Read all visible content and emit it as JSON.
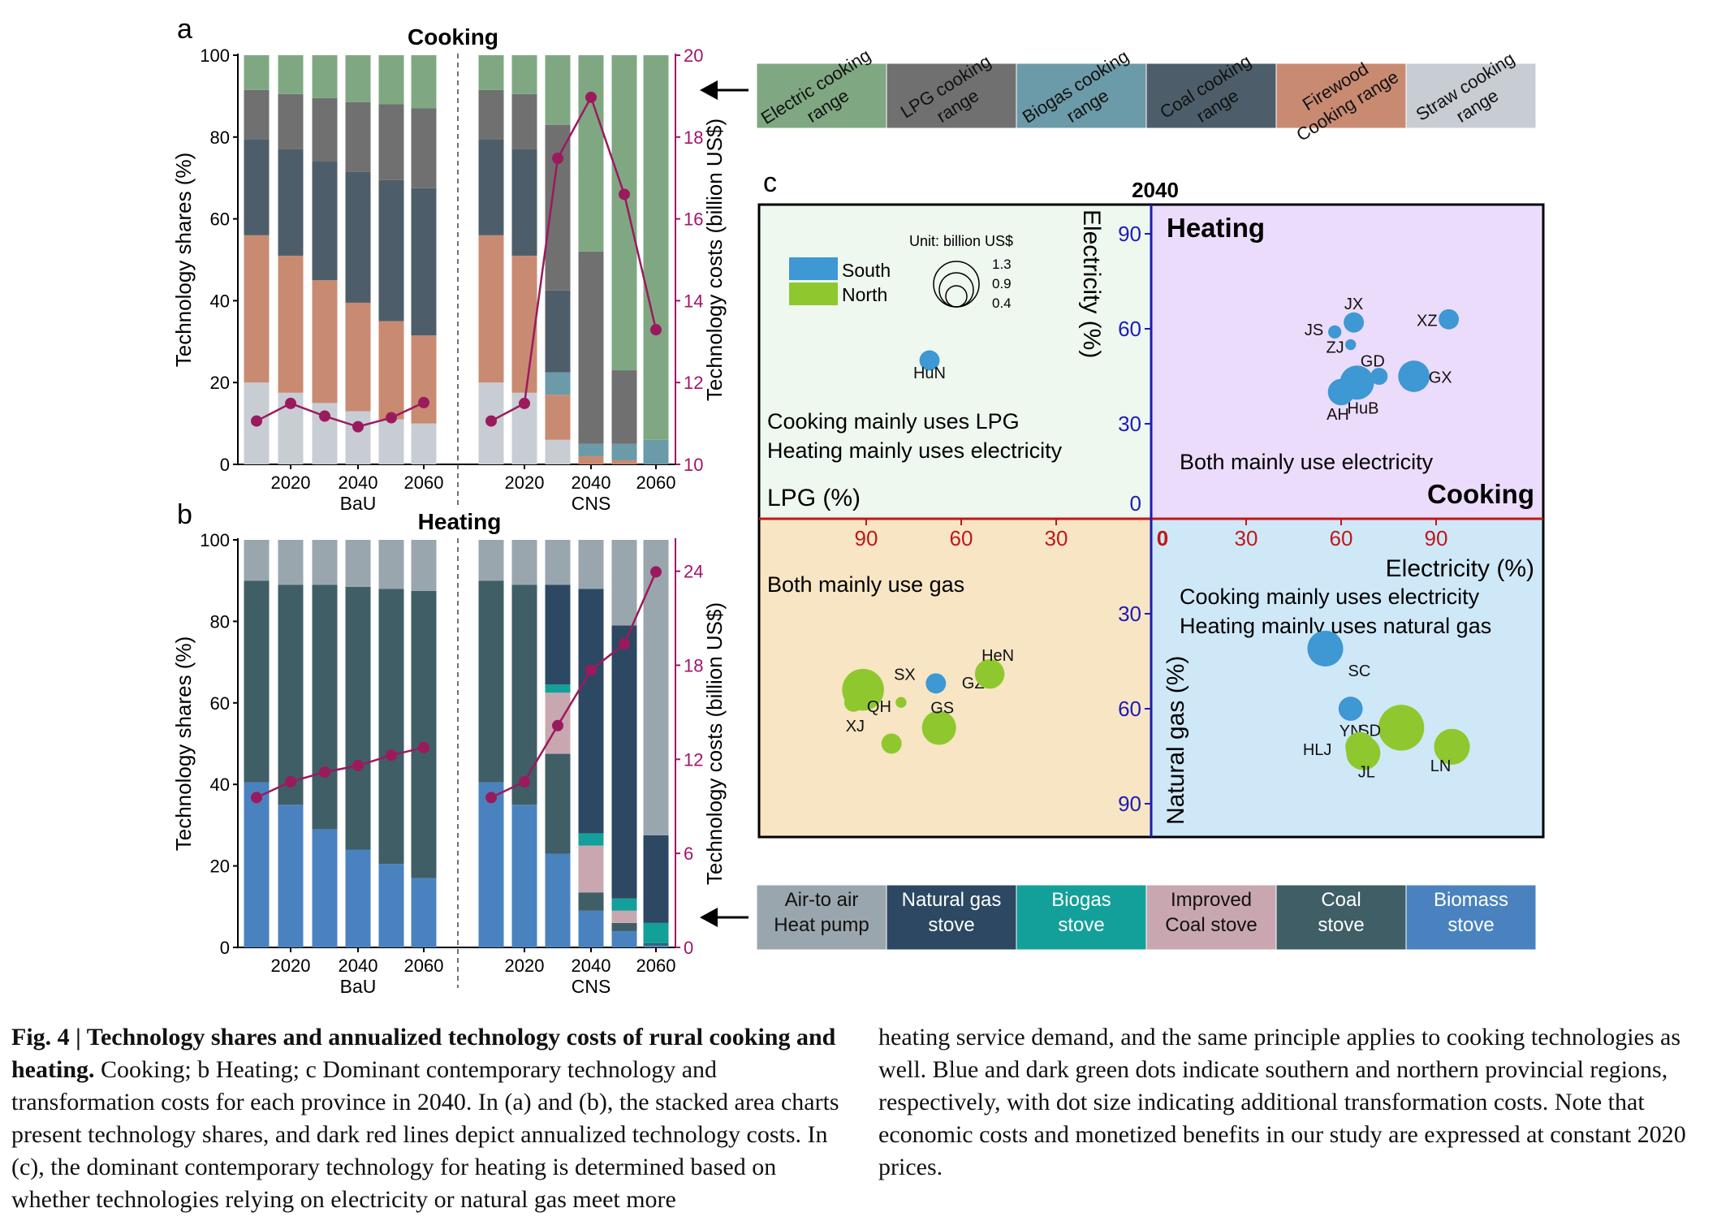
{
  "colors": {
    "cost_line": "#9b1a5e",
    "cost_axis": "#a0156a",
    "south": "#3d98d3",
    "north": "#8fc82e",
    "q_tl": "#eef8ee",
    "q_tr": "#ecdcfb",
    "q_bl": "#f8e5c4",
    "q_br": "#cfe8f8",
    "axis_red": "#c01818",
    "axis_blue": "#1c1cb4"
  },
  "panels": {
    "a": {
      "letter": "a",
      "title": "Cooking",
      "y_label": "Technology shares (%)",
      "y2_label": "Technology costs (billion US$)",
      "y_ticks": [
        "0",
        "20",
        "40",
        "60",
        "80",
        "100"
      ],
      "y2_ticks": [
        "10",
        "12",
        "14",
        "16",
        "18",
        "20"
      ],
      "x_ticks": [
        "2020",
        "2040",
        "2060"
      ],
      "groups": [
        "BaU",
        "CNS"
      ]
    },
    "b": {
      "letter": "b",
      "title": "Heating",
      "y_label": "Technology shares (%)",
      "y2_label": "Technology costs (billion US$)",
      "y_ticks": [
        "0",
        "20",
        "40",
        "60",
        "80",
        "100"
      ],
      "y2_ticks": [
        "0",
        "6",
        "12",
        "18",
        "24"
      ],
      "x_ticks": [
        "2020",
        "2040",
        "2060"
      ],
      "groups": [
        "BaU",
        "CNS"
      ]
    },
    "c": {
      "letter": "c",
      "title": "2040",
      "label_heating": "Heating",
      "label_cooking": "Cooking",
      "axis_electricity_y": "Electricity (%)",
      "axis_electricity_x": "Electricity (%)",
      "axis_lpg": "LPG (%)",
      "axis_gas": "Natural gas (%)",
      "up_ticks": [
        "0",
        "30",
        "60",
        "90"
      ],
      "right_ticks": [
        "0",
        "30",
        "60",
        "90"
      ],
      "left_ticks": [
        "90",
        "60",
        "30"
      ],
      "down_ticks": [
        "30",
        "60",
        "90"
      ],
      "q_tl_line1": "Cooking mainly uses LPG",
      "q_tl_line2": "Heating mainly uses electricity",
      "q_tr_text": "Both mainly use electricity",
      "q_bl_text": "Both mainly use gas",
      "q_br_line1": "Cooking mainly uses electricity",
      "q_br_line2": "Heating mainly uses natural gas",
      "legend_south": "South",
      "legend_north": "North",
      "legend_unit": "Unit: billion US$",
      "legend_sizes": [
        "1.3",
        "0.9",
        "0.4"
      ]
    }
  },
  "legend_cooking": [
    "Electric cooking range",
    "LPG cooking range",
    "Biogas cooking range",
    "Coal cooking range",
    "Firewood Cooking range",
    "Straw cooking range"
  ],
  "legend_heating": [
    "Air-to air Heat pump",
    "Natural gas stove",
    "Biogas stove",
    "Improved Coal stove",
    "Coal stove",
    "Biomass stove"
  ],
  "caption": {
    "fig_label": "Fig. 4 | Technology shares and annualized technology costs of rural cooking and heating.",
    "left_rest": " Cooking; b Heating; c Dominant contemporary technology and transformation costs for each province in 2040. In (a) and (b), the stacked area charts present technology shares, and dark red lines depict annualized technology costs. In (c), the dominant contemporary technology for heating is determined based on whether technologies relying on electricity or natural gas meet more",
    "right": "heating service demand, and the same principle applies to cooking technologies as well. Blue and dark green dots indicate southern and northern provincial regions, respectively, with dot size indicating additional transformation costs. Note that economic costs and monetized benefits in our study are expressed at constant 2020 prices."
  },
  "chart_data": [
    {
      "type": "bar",
      "title": "Cooking",
      "ylabel": "Technology shares (%)",
      "y2label": "Technology costs (billion US$)",
      "ylim": [
        0,
        100
      ],
      "y2lim": [
        10,
        20
      ],
      "groups": [
        "BaU",
        "CNS"
      ],
      "x": [
        2010,
        2020,
        2030,
        2040,
        2050,
        2060
      ],
      "stack_order": [
        "Straw cooking range",
        "Firewood Cooking range",
        "Biogas cooking range",
        "Coal cooking range",
        "LPG cooking range",
        "Electric cooking range"
      ],
      "series_colors": [
        "#c8cdd4",
        "#c98a72",
        "#6b9aa8",
        "#4d5e6a",
        "#707070",
        "#7fa882"
      ],
      "bau": [
        [
          20,
          36,
          0,
          23.5,
          12,
          8.5
        ],
        [
          17.5,
          33.5,
          0,
          26,
          13.5,
          9.5
        ],
        [
          15,
          30,
          0,
          29,
          15.5,
          10.5
        ],
        [
          13,
          26.5,
          0,
          32,
          17,
          11.5
        ],
        [
          11,
          24,
          0,
          34.5,
          18.5,
          12
        ],
        [
          10,
          21.5,
          0,
          36,
          19.5,
          13
        ]
      ],
      "cns": [
        [
          20,
          36,
          0,
          23.5,
          12,
          8.5
        ],
        [
          17.5,
          33.5,
          0,
          26,
          13.5,
          9.5
        ],
        [
          6,
          11,
          5.5,
          20,
          40.5,
          17
        ],
        [
          0,
          2,
          3,
          0,
          47,
          48
        ],
        [
          0,
          1,
          4,
          0,
          18,
          77
        ],
        [
          0,
          0,
          6,
          0,
          0,
          94
        ]
      ],
      "costs_bau": [
        11.06,
        11.49,
        11.18,
        10.92,
        11.14,
        11.51
      ],
      "costs_cns": [
        11.06,
        11.49,
        17.48,
        18.97,
        16.6,
        13.29
      ]
    },
    {
      "type": "bar",
      "title": "Heating",
      "ylabel": "Technology shares (%)",
      "y2label": "Technology costs (billion US$)",
      "ylim": [
        0,
        100
      ],
      "y2lim": [
        0,
        26
      ],
      "groups": [
        "BaU",
        "CNS"
      ],
      "x": [
        2010,
        2020,
        2030,
        2040,
        2050,
        2060
      ],
      "stack_order": [
        "Biomass stove",
        "Coal stove",
        "Improved Coal stove",
        "Biogas stove",
        "Natural gas stove",
        "Air-to air Heat pump"
      ],
      "series_colors": [
        "#4a82bf",
        "#3f5e66",
        "#c9a7b0",
        "#13a09a",
        "#2c4863",
        "#9aa6ae"
      ],
      "bau": [
        [
          40.5,
          49.5,
          0,
          0,
          0,
          10
        ],
        [
          35,
          54,
          0,
          0,
          0,
          11
        ],
        [
          29,
          60,
          0,
          0,
          0,
          11
        ],
        [
          24,
          64.5,
          0,
          0,
          0,
          11.5
        ],
        [
          20.5,
          67.5,
          0,
          0,
          0,
          12
        ],
        [
          17,
          70.5,
          0,
          0,
          0,
          12.5
        ]
      ],
      "cns": [
        [
          40.5,
          49.5,
          0,
          0,
          0,
          10
        ],
        [
          35,
          54,
          0,
          0,
          0,
          11
        ],
        [
          23,
          24.5,
          15,
          2,
          24.5,
          11
        ],
        [
          9,
          4.5,
          11.5,
          3,
          60,
          12
        ],
        [
          4,
          2,
          3,
          3,
          67,
          21
        ],
        [
          0.5,
          0.5,
          0,
          5,
          21.5,
          72.5
        ]
      ],
      "costs_bau": [
        9.56,
        10.57,
        11.18,
        11.6,
        12.26,
        12.75
      ],
      "costs_cns": [
        9.56,
        10.57,
        14.15,
        17.69,
        19.37,
        23.96
      ]
    },
    {
      "type": "scatter",
      "title": "2040",
      "units": "percent of dominant technology share; bubble size = additional transformation cost (billion US$)",
      "legend": [
        "South",
        "North"
      ],
      "points": [
        {
          "label": "HuN",
          "region": "South",
          "cook": "LPG",
          "cook_share": 70,
          "heat": "Electricity",
          "heat_share": 50,
          "cost": 0.35
        },
        {
          "label": "JS",
          "region": "South",
          "cook": "Electricity",
          "cook_share": 58,
          "heat": "Electricity",
          "heat_share": 59,
          "cost": 0.15
        },
        {
          "label": "JX",
          "region": "South",
          "cook": "Electricity",
          "cook_share": 64,
          "heat": "Electricity",
          "heat_share": 62,
          "cost": 0.35
        },
        {
          "label": "ZJ",
          "region": "South",
          "cook": "Electricity",
          "cook_share": 63,
          "heat": "Electricity",
          "heat_share": 55,
          "cost": 0.1
        },
        {
          "label": "XZ",
          "region": "South",
          "cook": "Electricity",
          "cook_share": 94,
          "heat": "Electricity",
          "heat_share": 63,
          "cost": 0.35
        },
        {
          "label": "GD",
          "region": "South",
          "cook": "Electricity",
          "cook_share": 72,
          "heat": "Electricity",
          "heat_share": 45,
          "cost": 0.25
        },
        {
          "label": "GX",
          "region": "South",
          "cook": "Electricity",
          "cook_share": 83,
          "heat": "Electricity",
          "heat_share": 45,
          "cost": 0.85
        },
        {
          "label": "HuB",
          "region": "South",
          "cook": "Electricity",
          "cook_share": 65,
          "heat": "Electricity",
          "heat_share": 43,
          "cost": 1.0
        },
        {
          "label": "AH",
          "region": "South",
          "cook": "Electricity",
          "cook_share": 60,
          "heat": "Electricity",
          "heat_share": 40,
          "cost": 0.6
        },
        {
          "label": "SC",
          "region": "South",
          "cook": "Electricity",
          "cook_share": 55,
          "heat": "Natural gas",
          "heat_share": 41,
          "cost": 1.1
        },
        {
          "label": "YN",
          "region": "South",
          "cook": "Electricity",
          "cook_share": 63,
          "heat": "Natural gas",
          "heat_share": 60,
          "cost": 0.5
        },
        {
          "label": "SD",
          "region": "North",
          "cook": "Electricity",
          "cook_share": 79,
          "heat": "Natural gas",
          "heat_share": 66,
          "cost": 1.8
        },
        {
          "label": "HLJ",
          "region": "North",
          "cook": "Electricity",
          "cook_share": 66,
          "heat": "Natural gas",
          "heat_share": 72,
          "cost": 0.75
        },
        {
          "label": "JL",
          "region": "North",
          "cook": "Electricity",
          "cook_share": 67,
          "heat": "Natural gas",
          "heat_share": 74,
          "cost": 1.0
        },
        {
          "label": "LN",
          "region": "North",
          "cook": "Electricity",
          "cook_share": 95,
          "heat": "Natural gas",
          "heat_share": 72,
          "cost": 1.1
        },
        {
          "label": "SX",
          "region": "North",
          "cook": "Gas",
          "cook_share": 91,
          "heat": "Natural gas",
          "heat_share": 54,
          "cost": 1.5
        },
        {
          "label": "XJ",
          "region": "North",
          "cook": "Gas",
          "cook_share": 94,
          "heat": "Natural gas",
          "heat_share": 58,
          "cost": 0.3
        },
        {
          "label": "QH",
          "region": "North",
          "cook": "Gas",
          "cook_share": 79,
          "heat": "Natural gas",
          "heat_share": 58,
          "cost": 0.1
        },
        {
          "label": "GZ",
          "region": "South",
          "cook": "Gas",
          "cook_share": 68,
          "heat": "Natural gas",
          "heat_share": 52,
          "cost": 0.35
        },
        {
          "label": "GS",
          "region": "North",
          "cook": "Gas",
          "cook_share": 67,
          "heat": "Natural gas",
          "heat_share": 66,
          "cost": 1.0
        },
        {
          "label": "HeN",
          "region": "North",
          "cook": "Gas",
          "cook_share": 51,
          "heat": "Natural gas",
          "heat_share": 49,
          "cost": 0.75
        },
        {
          "label": "",
          "region": "North",
          "cook": "Gas",
          "cook_share": 82,
          "heat": "Natural gas",
          "heat_share": 71,
          "cost": 0.35
        }
      ]
    }
  ]
}
